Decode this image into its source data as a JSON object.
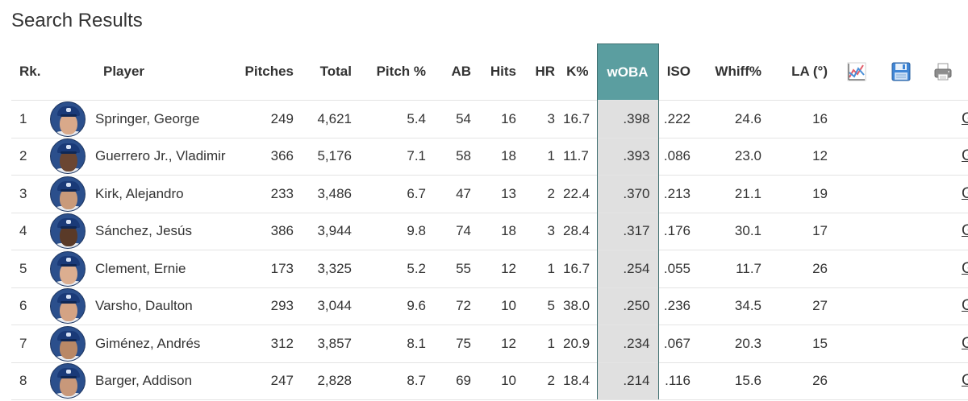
{
  "page": {
    "title": "Search Results"
  },
  "columns": {
    "rank": "Rk.",
    "player": "Player",
    "pitches": "Pitches",
    "total": "Total",
    "pitch_pct": "Pitch %",
    "ab": "AB",
    "hits": "Hits",
    "hr": "HR",
    "k_pct": "K%",
    "woba": "wOBA",
    "iso": "ISO",
    "whiff_pct": "Whiff%",
    "la": "LA (°)"
  },
  "header_icons": [
    "chart-icon",
    "save-icon",
    "print-icon"
  ],
  "colors": {
    "woba_header_bg": "#5b9ea0",
    "woba_cell_bg": "#e0e0e0",
    "woba_border": "#3f6f70"
  },
  "rows": [
    {
      "rank": "1",
      "player": "Springer, George",
      "pitches": "249",
      "total": "4,621",
      "pitch_pct": "5.4",
      "ab": "54",
      "hits": "16",
      "hr": "3",
      "k_pct": "16.7",
      "woba": ".398",
      "iso": ".222",
      "whiff_pct": "24.6",
      "la": "16",
      "graphs": "Graphs",
      "skin": "#d9a98a"
    },
    {
      "rank": "2",
      "player": "Guerrero Jr., Vladimir",
      "pitches": "366",
      "total": "5,176",
      "pitch_pct": "7.1",
      "ab": "58",
      "hits": "18",
      "hr": "1",
      "k_pct": "11.7",
      "woba": ".393",
      "iso": ".086",
      "whiff_pct": "23.0",
      "la": "12",
      "graphs": "Graphs",
      "skin": "#6b4632"
    },
    {
      "rank": "3",
      "player": "Kirk, Alejandro",
      "pitches": "233",
      "total": "3,486",
      "pitch_pct": "6.7",
      "ab": "47",
      "hits": "13",
      "hr": "2",
      "k_pct": "22.4",
      "woba": ".370",
      "iso": ".213",
      "whiff_pct": "21.1",
      "la": "19",
      "graphs": "Graphs",
      "skin": "#c99a7a"
    },
    {
      "rank": "4",
      "player": "Sánchez, Jesús",
      "pitches": "386",
      "total": "3,944",
      "pitch_pct": "9.8",
      "ab": "74",
      "hits": "18",
      "hr": "3",
      "k_pct": "28.4",
      "woba": ".317",
      "iso": ".176",
      "whiff_pct": "30.1",
      "la": "17",
      "graphs": "Graphs",
      "skin": "#5a3a28"
    },
    {
      "rank": "5",
      "player": "Clement, Ernie",
      "pitches": "173",
      "total": "3,325",
      "pitch_pct": "5.2",
      "ab": "55",
      "hits": "12",
      "hr": "1",
      "k_pct": "16.7",
      "woba": ".254",
      "iso": ".055",
      "whiff_pct": "11.7",
      "la": "26",
      "graphs": "Graphs",
      "skin": "#dcae90"
    },
    {
      "rank": "6",
      "player": "Varsho, Daulton",
      "pitches": "293",
      "total": "3,044",
      "pitch_pct": "9.6",
      "ab": "72",
      "hits": "10",
      "hr": "5",
      "k_pct": "38.0",
      "woba": ".250",
      "iso": ".236",
      "whiff_pct": "34.5",
      "la": "27",
      "graphs": "Graphs",
      "skin": "#d4a384"
    },
    {
      "rank": "7",
      "player": "Giménez, Andrés",
      "pitches": "312",
      "total": "3,857",
      "pitch_pct": "8.1",
      "ab": "75",
      "hits": "12",
      "hr": "1",
      "k_pct": "20.9",
      "woba": ".234",
      "iso": ".067",
      "whiff_pct": "20.3",
      "la": "15",
      "graphs": "Graphs",
      "skin": "#b98866"
    },
    {
      "rank": "8",
      "player": "Barger, Addison",
      "pitches": "247",
      "total": "2,828",
      "pitch_pct": "8.7",
      "ab": "69",
      "hits": "10",
      "hr": "2",
      "k_pct": "18.4",
      "woba": ".214",
      "iso": ".116",
      "whiff_pct": "15.6",
      "la": "26",
      "graphs": "Graphs",
      "skin": "#c8987a"
    }
  ]
}
